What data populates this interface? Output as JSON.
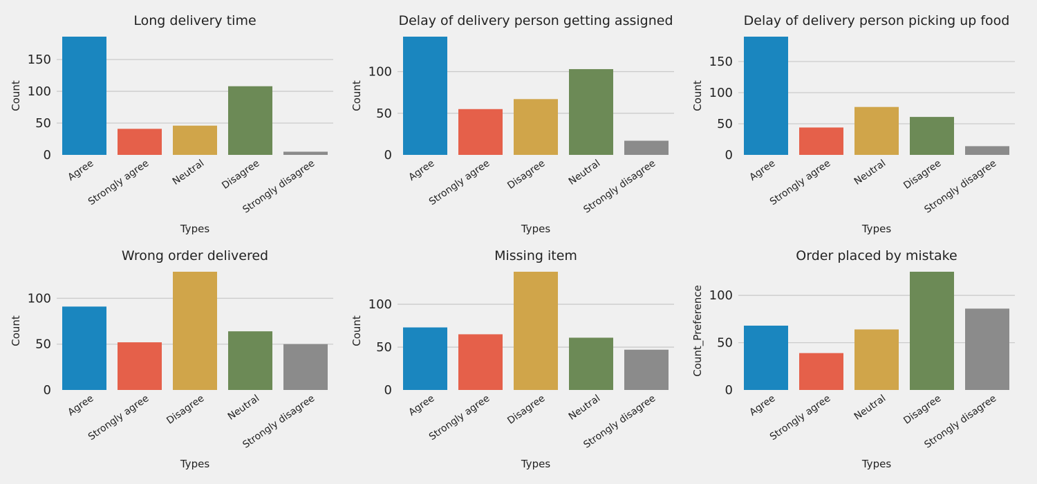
{
  "colors": {
    "background": "#f0f0f0",
    "grid": "#cbcbcb",
    "palette": [
      "#1a86bf",
      "#e5604a",
      "#d0a54a",
      "#6c8a56",
      "#8b8b8b"
    ]
  },
  "chart_data": [
    {
      "type": "bar",
      "title": "Long delivery time",
      "xlabel": "Types",
      "ylabel": "Count",
      "categories": [
        "Agree",
        "Strongly agree",
        "Neutral",
        "Disagree",
        "Strongly disagree"
      ],
      "values": [
        186,
        41,
        46,
        108,
        5
      ],
      "ylim": [
        0,
        186
      ],
      "yticks": [
        0,
        50,
        100,
        150
      ],
      "grid": true
    },
    {
      "type": "bar",
      "title": "Delay of delivery person getting assigned",
      "xlabel": "Types",
      "ylabel": "Count",
      "categories": [
        "Agree",
        "Strongly agree",
        "Disagree",
        "Neutral",
        "Strongly disagree"
      ],
      "values": [
        142,
        55,
        67,
        103,
        17
      ],
      "ylim": [
        0,
        142
      ],
      "yticks": [
        0,
        50,
        100
      ],
      "grid": true
    },
    {
      "type": "bar",
      "title": "Delay of delivery person picking up food",
      "xlabel": "Types",
      "ylabel": "Count",
      "categories": [
        "Agree",
        "Strongly agree",
        "Neutral",
        "Disagree",
        "Strongly disagree"
      ],
      "values": [
        190,
        44,
        77,
        61,
        14
      ],
      "ylim": [
        0,
        190
      ],
      "yticks": [
        0,
        50,
        100,
        150
      ],
      "grid": true
    },
    {
      "type": "bar",
      "title": "Wrong order delivered",
      "xlabel": "Types",
      "ylabel": "Count",
      "categories": [
        "Agree",
        "Strongly agree",
        "Disagree",
        "Neutral",
        "Strongly disagree"
      ],
      "values": [
        91,
        52,
        129,
        64,
        50
      ],
      "ylim": [
        0,
        129
      ],
      "yticks": [
        0,
        50,
        100
      ],
      "grid": true
    },
    {
      "type": "bar",
      "title": "Missing item",
      "xlabel": "Types",
      "ylabel": "Count",
      "categories": [
        "Agree",
        "Strongly agree",
        "Disagree",
        "Neutral",
        "Strongly disagree"
      ],
      "values": [
        73,
        65,
        138,
        61,
        47
      ],
      "ylim": [
        0,
        138
      ],
      "yticks": [
        0,
        50,
        100
      ],
      "grid": true
    },
    {
      "type": "bar",
      "title": "Order placed by mistake",
      "xlabel": "Types",
      "ylabel": "Count_Preference",
      "categories": [
        "Agree",
        "Strongly agree",
        "Neutral",
        "Disagree",
        "Strongly disagree"
      ],
      "values": [
        68,
        39,
        64,
        125,
        86
      ],
      "ylim": [
        0,
        125
      ],
      "yticks": [
        0,
        50,
        100
      ],
      "grid": true
    }
  ]
}
